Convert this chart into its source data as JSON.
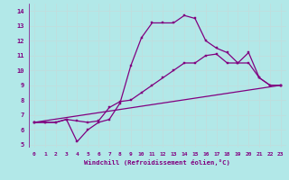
{
  "xlabel": "Windchill (Refroidissement éolien,°C)",
  "background_color": "#b2e8e8",
  "line_color": "#800080",
  "grid_color": "#d0e8e8",
  "xlim": [
    -0.5,
    23.5
  ],
  "ylim": [
    4.8,
    14.5
  ],
  "xticks": [
    0,
    1,
    2,
    3,
    4,
    5,
    6,
    7,
    8,
    9,
    10,
    11,
    12,
    13,
    14,
    15,
    16,
    17,
    18,
    19,
    20,
    21,
    22,
    23
  ],
  "yticks": [
    5,
    6,
    7,
    8,
    9,
    10,
    11,
    12,
    13,
    14
  ],
  "line1_x": [
    0,
    23
  ],
  "line1_y": [
    6.5,
    9.0
  ],
  "line2_x": [
    0,
    1,
    2,
    3,
    4,
    5,
    6,
    7,
    8,
    9,
    10,
    11,
    12,
    13,
    14,
    15,
    16,
    17,
    18,
    19,
    20,
    21,
    22,
    23
  ],
  "line2_y": [
    6.5,
    6.5,
    6.5,
    6.7,
    6.6,
    6.5,
    6.6,
    7.5,
    7.9,
    8.0,
    8.5,
    9.0,
    9.5,
    10.0,
    10.5,
    10.5,
    11.0,
    11.1,
    10.5,
    10.5,
    10.5,
    9.5,
    9.0,
    9.0
  ],
  "line3_x": [
    0,
    1,
    2,
    3,
    4,
    5,
    6,
    7,
    8,
    9,
    10,
    11,
    12,
    13,
    14,
    15,
    16,
    17,
    18,
    19,
    20,
    21,
    22,
    23
  ],
  "line3_y": [
    6.5,
    6.5,
    6.5,
    6.7,
    5.2,
    6.0,
    6.5,
    6.7,
    7.8,
    10.3,
    12.2,
    13.2,
    13.2,
    13.2,
    13.7,
    13.5,
    12.0,
    11.5,
    11.2,
    10.5,
    11.2,
    9.5,
    9.0,
    9.0
  ]
}
